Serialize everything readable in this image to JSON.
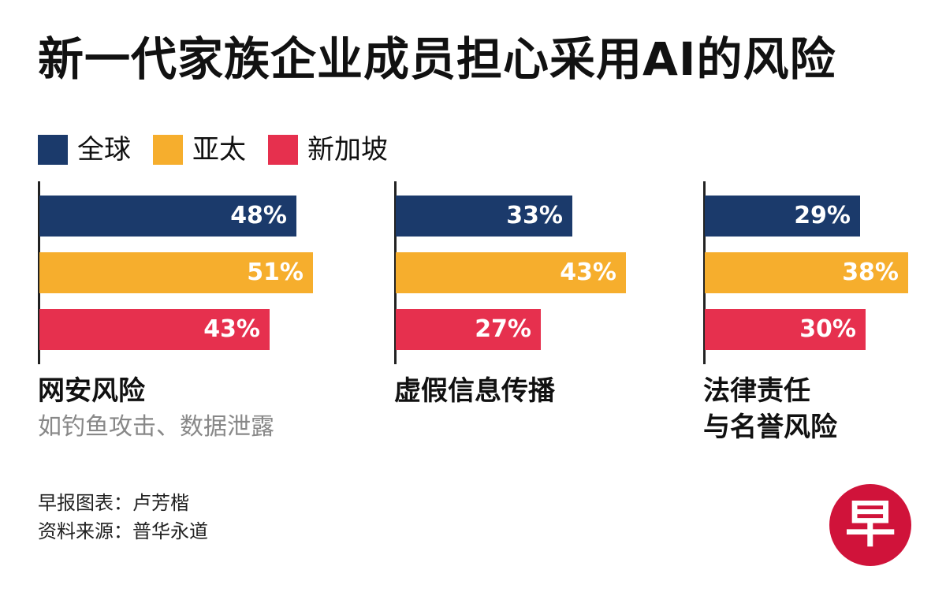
{
  "chart_data": {
    "type": "bar",
    "title": "新一代家族企业成员担心采用AI的风险",
    "series": [
      {
        "name": "全球",
        "color": "#1b3a6b",
        "values": [
          48,
          33,
          29
        ]
      },
      {
        "name": "亚太",
        "color": "#f6ae2d",
        "values": [
          51,
          43,
          38
        ]
      },
      {
        "name": "新加坡",
        "color": "#e6304e",
        "values": [
          43,
          27,
          30
        ]
      }
    ],
    "value_labels": [
      [
        "48%",
        "33%",
        "29%"
      ],
      [
        "51%",
        "43%",
        "38%"
      ],
      [
        "43%",
        "27%",
        "30%"
      ]
    ],
    "categories": [
      {
        "title": "网安风险",
        "subtitle": "如钓鱼攻击、数据泄露"
      },
      {
        "title": "虚假信息传播",
        "subtitle": ""
      },
      {
        "title": "法律责任\n与名誉风险",
        "subtitle": ""
      }
    ],
    "orientation": "horizontal",
    "legend_position": "top-left",
    "grid": false
  },
  "credits": {
    "author": "早报图表：卢芳楷",
    "source": "资料来源：普华永道"
  },
  "logo": {
    "text": "早",
    "color": "#d0133a"
  }
}
